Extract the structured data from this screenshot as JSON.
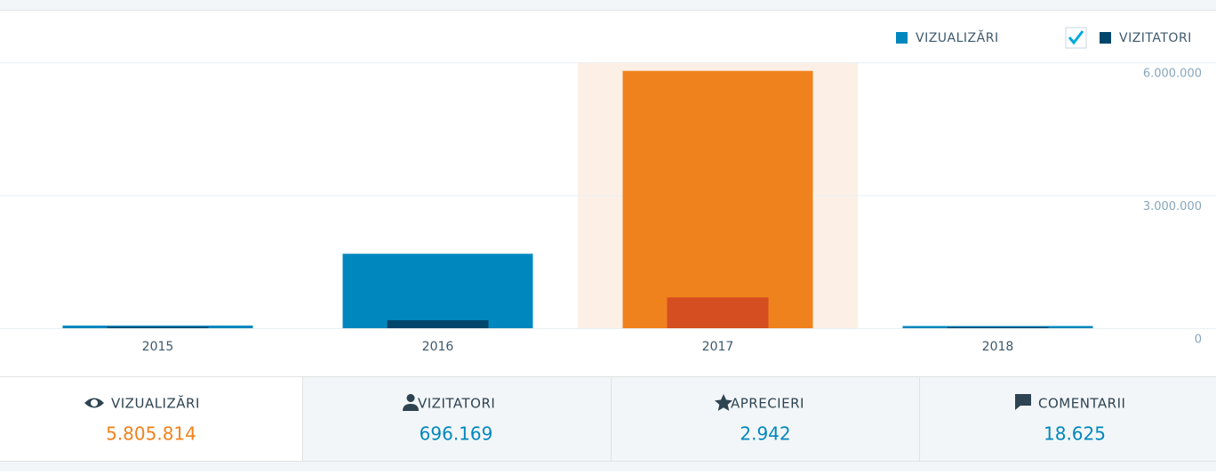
{
  "chart_data": {
    "type": "bar",
    "categories": [
      "2015",
      "2016",
      "2017",
      "2018"
    ],
    "series": [
      {
        "name": "VIZUALIZĂRI",
        "color": "#0087be",
        "highlight_color": "#f0821e",
        "values": [
          60000,
          1680000,
          5805814,
          50000
        ]
      },
      {
        "name": "VIZITATORI",
        "color": "#00476b",
        "highlight_color": "#d54e21",
        "values": [
          30000,
          180000,
          696169,
          25000
        ]
      }
    ],
    "highlight": "2017",
    "ylim": [
      0,
      6000000
    ],
    "yticks": [
      0,
      {
        "value": 3000000,
        "label": "3.000.000"
      },
      {
        "value": 6000000,
        "label": "6.000.000"
      }
    ],
    "grid": true
  },
  "tabs": [
    {
      "label": "VIZUALIZĂRI",
      "value": "5.805.814"
    },
    {
      "label": "VIZITATORI",
      "value": "696.169"
    },
    {
      "label": "APRECIERI",
      "value": "2.942"
    },
    {
      "label": "COMENTARII",
      "value": "18.625"
    }
  ]
}
